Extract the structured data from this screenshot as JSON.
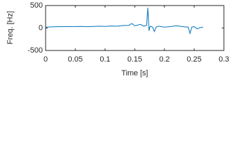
{
  "chart_data": {
    "type": "line",
    "x_label": "Time [s]",
    "y_label": "Freq. [Hz]",
    "x": [
      0,
      0.01,
      0.02,
      0.03,
      0.04,
      0.05,
      0.06,
      0.07,
      0.08,
      0.09,
      0.1,
      0.11,
      0.12,
      0.13,
      0.14,
      0.145,
      0.15,
      0.16,
      0.165,
      0.17,
      0.172,
      0.174,
      0.176,
      0.18,
      0.183,
      0.186,
      0.19,
      0.2,
      0.21,
      0.22,
      0.23,
      0.24,
      0.243,
      0.246,
      0.25,
      0.255,
      0.26,
      0.265
    ],
    "series": [
      {
        "color": "#0072bd",
        "values": [
          20,
          25,
          28,
          30,
          30,
          32,
          35,
          30,
          35,
          40,
          35,
          45,
          40,
          55,
          60,
          100,
          50,
          80,
          40,
          60,
          450,
          -60,
          40,
          20,
          -80,
          20,
          40,
          20,
          30,
          50,
          30,
          20,
          -120,
          20,
          30,
          -20,
          10,
          20
        ]
      }
    ],
    "xlim": [
      0,
      0.3
    ],
    "xticks": [
      0,
      0.05,
      0.1,
      0.15,
      0.2,
      0.25,
      0.3
    ],
    "ylim": [
      -500,
      500
    ],
    "yticks": [
      -500,
      0,
      500
    ]
  }
}
